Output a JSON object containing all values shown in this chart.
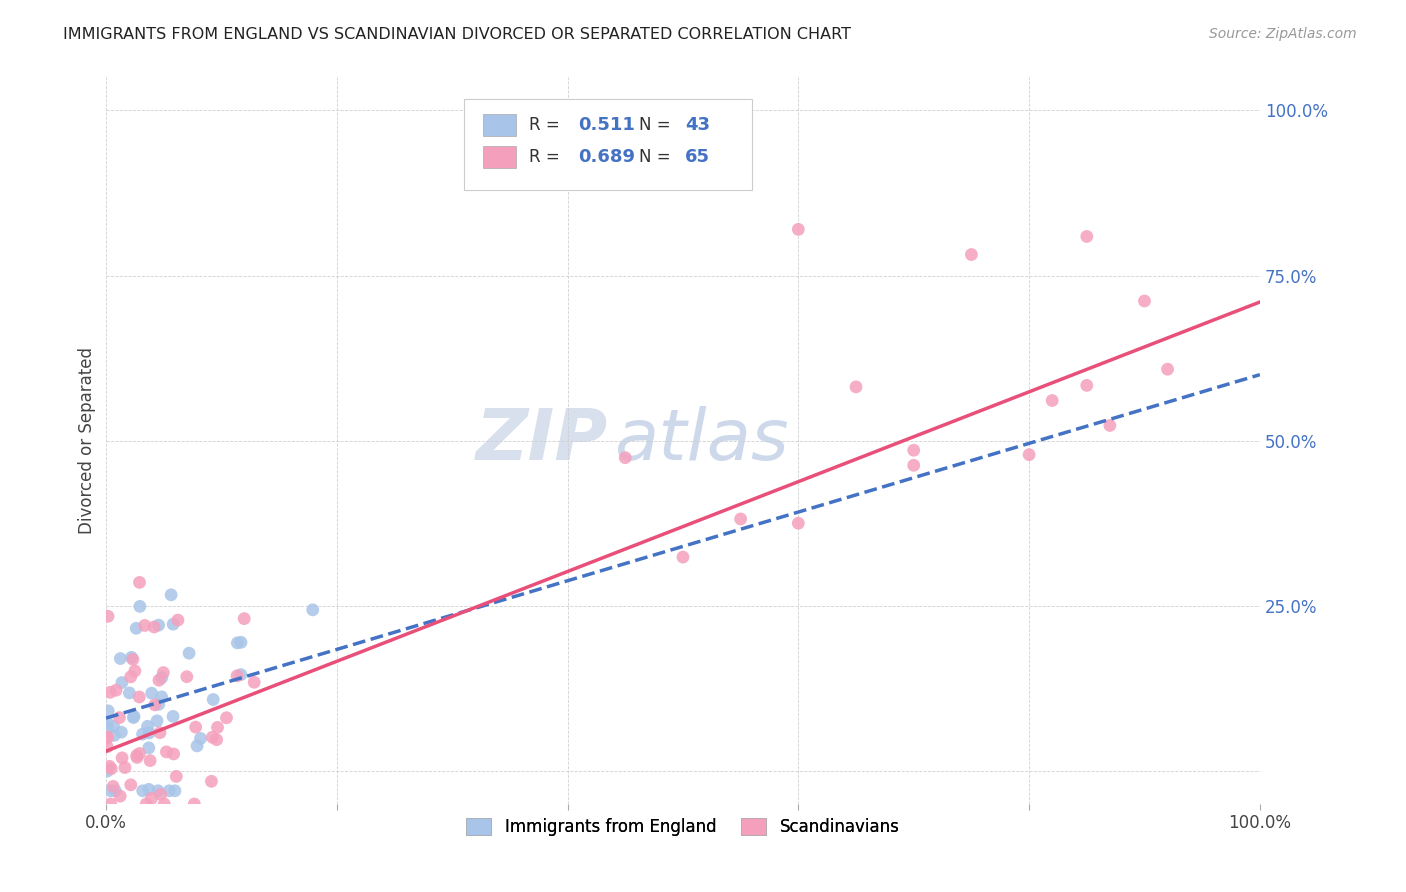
{
  "title": "IMMIGRANTS FROM ENGLAND VS SCANDINAVIAN DIVORCED OR SEPARATED CORRELATION CHART",
  "source": "Source: ZipAtlas.com",
  "ylabel": "Divorced or Separated",
  "legend_label1": "Immigrants from England",
  "legend_label2": "Scandinavians",
  "r1": "0.511",
  "n1": "43",
  "r2": "0.689",
  "n2": "65",
  "color1": "#a8c4e8",
  "color2": "#f4a0bc",
  "line1_color": "#4472c4",
  "line2_color": "#e8507a",
  "watermark_zip": "ZIP",
  "watermark_atlas": "atlas",
  "background_color": "#ffffff",
  "xlim": [
    0.0,
    1.0
  ],
  "ylim": [
    -0.05,
    1.05
  ],
  "grid_color": "#cccccc",
  "right_tick_color": "#4472c4",
  "title_color": "#222222",
  "source_color": "#999999",
  "ylabel_color": "#444444"
}
